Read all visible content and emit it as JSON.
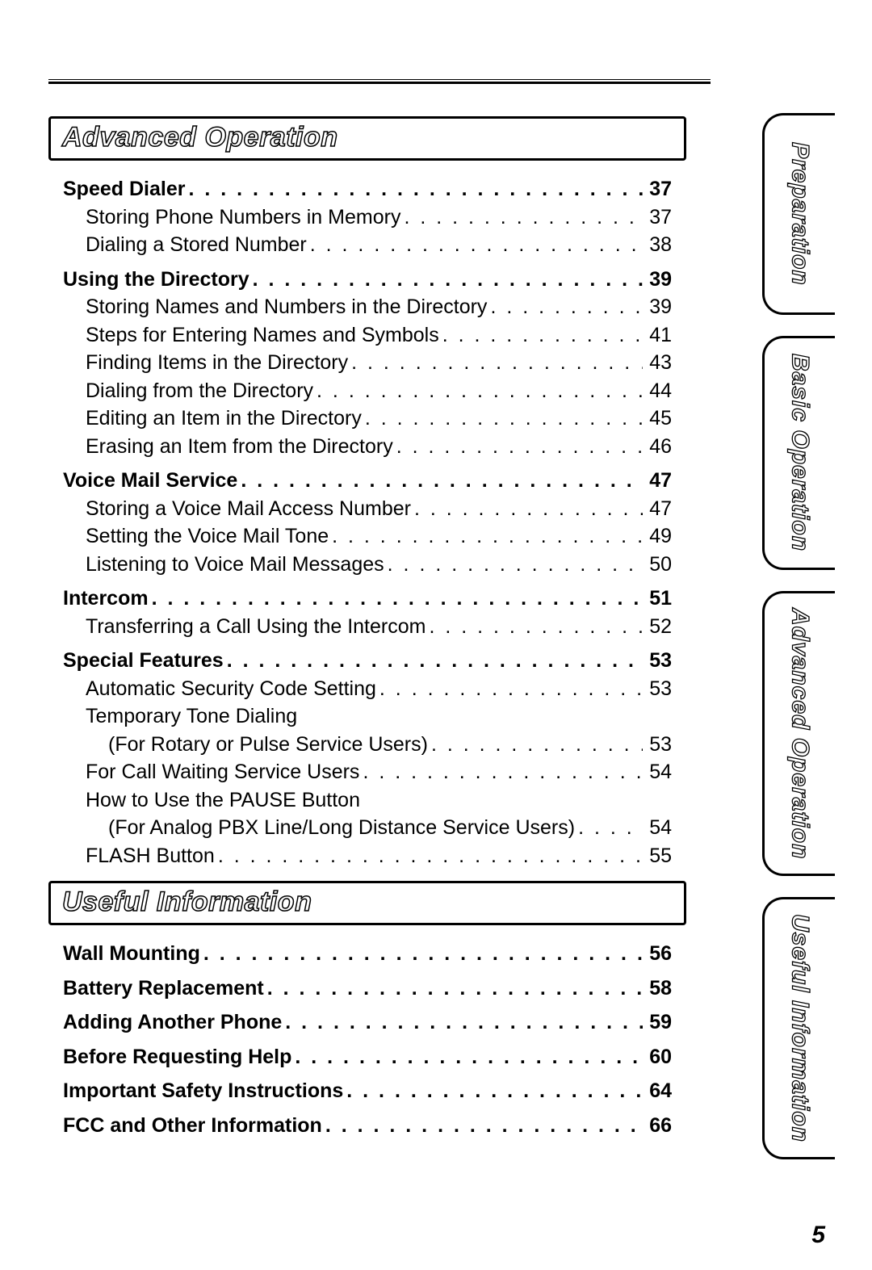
{
  "page_number": "5",
  "colors": {
    "text": "#000000",
    "background": "#ffffff",
    "rule": "#000000"
  },
  "typography": {
    "body_fontsize_pt": 18,
    "heading_fontsize_pt": 26,
    "tab_fontsize_pt": 22,
    "font_family": "Arial"
  },
  "tabs": [
    {
      "label": "Preparation"
    },
    {
      "label": "Basic Operation"
    },
    {
      "label": "Advanced Operation"
    },
    {
      "label": "Useful Information"
    }
  ],
  "sections": [
    {
      "title": "Advanced Operation",
      "entries": [
        {
          "label": "Speed Dialer",
          "page": "37",
          "level": 0,
          "bold": true
        },
        {
          "label": "Storing Phone Numbers in Memory",
          "page": "37",
          "level": 1
        },
        {
          "label": "Dialing a Stored Number",
          "page": "38",
          "level": 1
        },
        {
          "label": "Using the Directory",
          "page": "39",
          "level": 0,
          "bold": true
        },
        {
          "label": "Storing Names and Numbers in the Directory",
          "page": "39",
          "level": 1
        },
        {
          "label": "Steps for Entering Names and Symbols",
          "page": "41",
          "level": 1
        },
        {
          "label": "Finding Items in the Directory",
          "page": "43",
          "level": 1
        },
        {
          "label": "Dialing from the Directory",
          "page": "44",
          "level": 1
        },
        {
          "label": "Editing an Item in the Directory",
          "page": "45",
          "level": 1
        },
        {
          "label": "Erasing an Item from the Directory",
          "page": "46",
          "level": 1
        },
        {
          "label": "Voice Mail Service",
          "page": "47",
          "level": 0,
          "bold": true
        },
        {
          "label": "Storing a Voice Mail Access Number",
          "page": "47",
          "level": 1
        },
        {
          "label": "Setting the Voice Mail Tone",
          "page": "49",
          "level": 1
        },
        {
          "label": "Listening to Voice Mail Messages",
          "page": "50",
          "level": 1
        },
        {
          "label": "Intercom",
          "page": "51",
          "level": 0,
          "bold": true
        },
        {
          "label": "Transferring a Call Using the Intercom",
          "page": "52",
          "level": 1
        },
        {
          "label": "Special Features",
          "page": "53",
          "level": 0,
          "bold": true
        },
        {
          "label": "Automatic Security Code Setting",
          "page": "53",
          "level": 1
        },
        {
          "label": "Temporary Tone Dialing",
          "page": "",
          "level": 1,
          "noleader": true
        },
        {
          "label": "(For Rotary or Pulse Service Users)",
          "page": "53",
          "level": 2
        },
        {
          "label": "For Call Waiting Service Users",
          "page": "54",
          "level": 1
        },
        {
          "label": "How to Use the PAUSE Button",
          "page": "",
          "level": 1,
          "noleader": true
        },
        {
          "label": "(For Analog PBX Line/Long Distance Service Users)",
          "page": "54",
          "level": 2
        },
        {
          "label": "FLASH Button",
          "page": "55",
          "level": 1
        }
      ]
    },
    {
      "title": "Useful Information",
      "entries": [
        {
          "label": "Wall Mounting",
          "page": "56",
          "level": 0,
          "bold": true
        },
        {
          "label": "Battery Replacement",
          "page": "58",
          "level": 0,
          "bold": true
        },
        {
          "label": "Adding Another Phone",
          "page": "59",
          "level": 0,
          "bold": true
        },
        {
          "label": "Before Requesting Help",
          "page": "60",
          "level": 0,
          "bold": true
        },
        {
          "label": "Important Safety Instructions",
          "page": "64",
          "level": 0,
          "bold": true
        },
        {
          "label": "FCC and Other Information",
          "page": "66",
          "level": 0,
          "bold": true
        }
      ]
    }
  ]
}
